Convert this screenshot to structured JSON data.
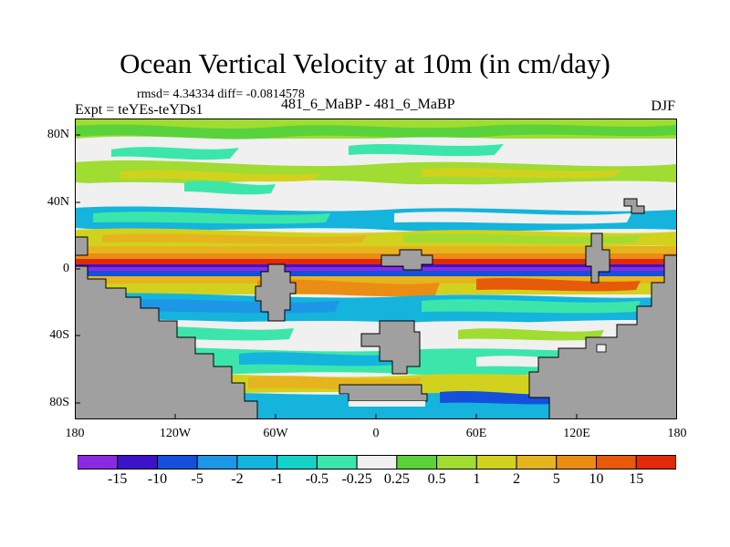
{
  "title": "Ocean Vertical Velocity at 10m (in cm/day)",
  "stats": "rmsd= 4.34334 diff= -0.0814578",
  "experiment": "Expt = teYEs-teYDs1",
  "case": "481_6_MaBP - 481_6_MaBP",
  "season": "DJF",
  "lat_labels": [
    "80N",
    "40N",
    "0",
    "40S",
    "80S"
  ],
  "lon_labels": [
    "180",
    "120W",
    "60W",
    "0",
    "60E",
    "120E",
    "180"
  ],
  "colorbar": {
    "labels": [
      "-15",
      "-10",
      "-5",
      "-2",
      "-1",
      "-0.5",
      "-0.25",
      "0.25",
      "0.5",
      "1",
      "2",
      "5",
      "10",
      "15"
    ],
    "colors": [
      "#8a2be2",
      "#3c14c8",
      "#1450dc",
      "#1e96e6",
      "#14b4dc",
      "#14d2c8",
      "#3ce6aa",
      "#f0f0f0",
      "#5ad23c",
      "#a0dc32",
      "#d2d21e",
      "#e6b41e",
      "#eb8c14",
      "#e65a0a",
      "#e02a0a"
    ]
  },
  "land_color": "#a0a0a0"
}
